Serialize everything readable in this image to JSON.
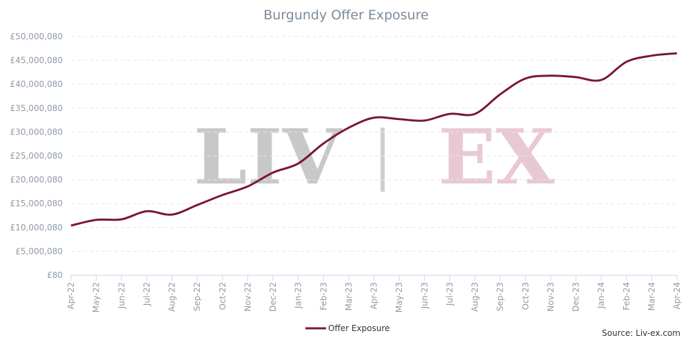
{
  "chart_data": {
    "type": "line",
    "title": "Burgundy Offer Exposure",
    "watermark": [
      "LIV",
      "EX"
    ],
    "source": "Source: Liv-ex.com",
    "categories": [
      "Apr-22",
      "May-22",
      "Jun-22",
      "Jul-22",
      "Aug-22",
      "Sep-22",
      "Oct-22",
      "Nov-22",
      "Dec-22",
      "Jan-23",
      "Feb-23",
      "Mar-23",
      "Apr-23",
      "May-23",
      "Jun-23",
      "Jul-23",
      "Aug-23",
      "Sep-23",
      "Oct-23",
      "Nov-23",
      "Dec-23",
      "Jan-24",
      "Feb-24",
      "Mar-24",
      "Apr-24"
    ],
    "series": [
      {
        "name": "Offer Exposure",
        "color": "#7b1538",
        "values": [
          10400000,
          11600000,
          11700000,
          13400000,
          12700000,
          14700000,
          16800000,
          18600000,
          21500000,
          23400000,
          27600000,
          30900000,
          33000000,
          32700000,
          32400000,
          33800000,
          33800000,
          37900000,
          41200000,
          41800000,
          41500000,
          40900000,
          44700000,
          46000000,
          46500000
        ]
      }
    ],
    "ylim": [
      80,
      50000080
    ],
    "yticks": [
      {
        "value": 80,
        "label": "£80"
      },
      {
        "value": 5000080,
        "label": "£5,000,080"
      },
      {
        "value": 10000080,
        "label": "£10,000,080"
      },
      {
        "value": 15000080,
        "label": "£15,000,080"
      },
      {
        "value": 20000080,
        "label": "£20,000,080"
      },
      {
        "value": 25000080,
        "label": "£25,000,080"
      },
      {
        "value": 30000080,
        "label": "£30,000,080"
      },
      {
        "value": 35000080,
        "label": "£35,000,080"
      },
      {
        "value": 40000080,
        "label": "£40,000,080"
      },
      {
        "value": 45000080,
        "label": "£45,000,080"
      },
      {
        "value": 50000080,
        "label": "£50,000,080"
      }
    ],
    "grid": true
  }
}
